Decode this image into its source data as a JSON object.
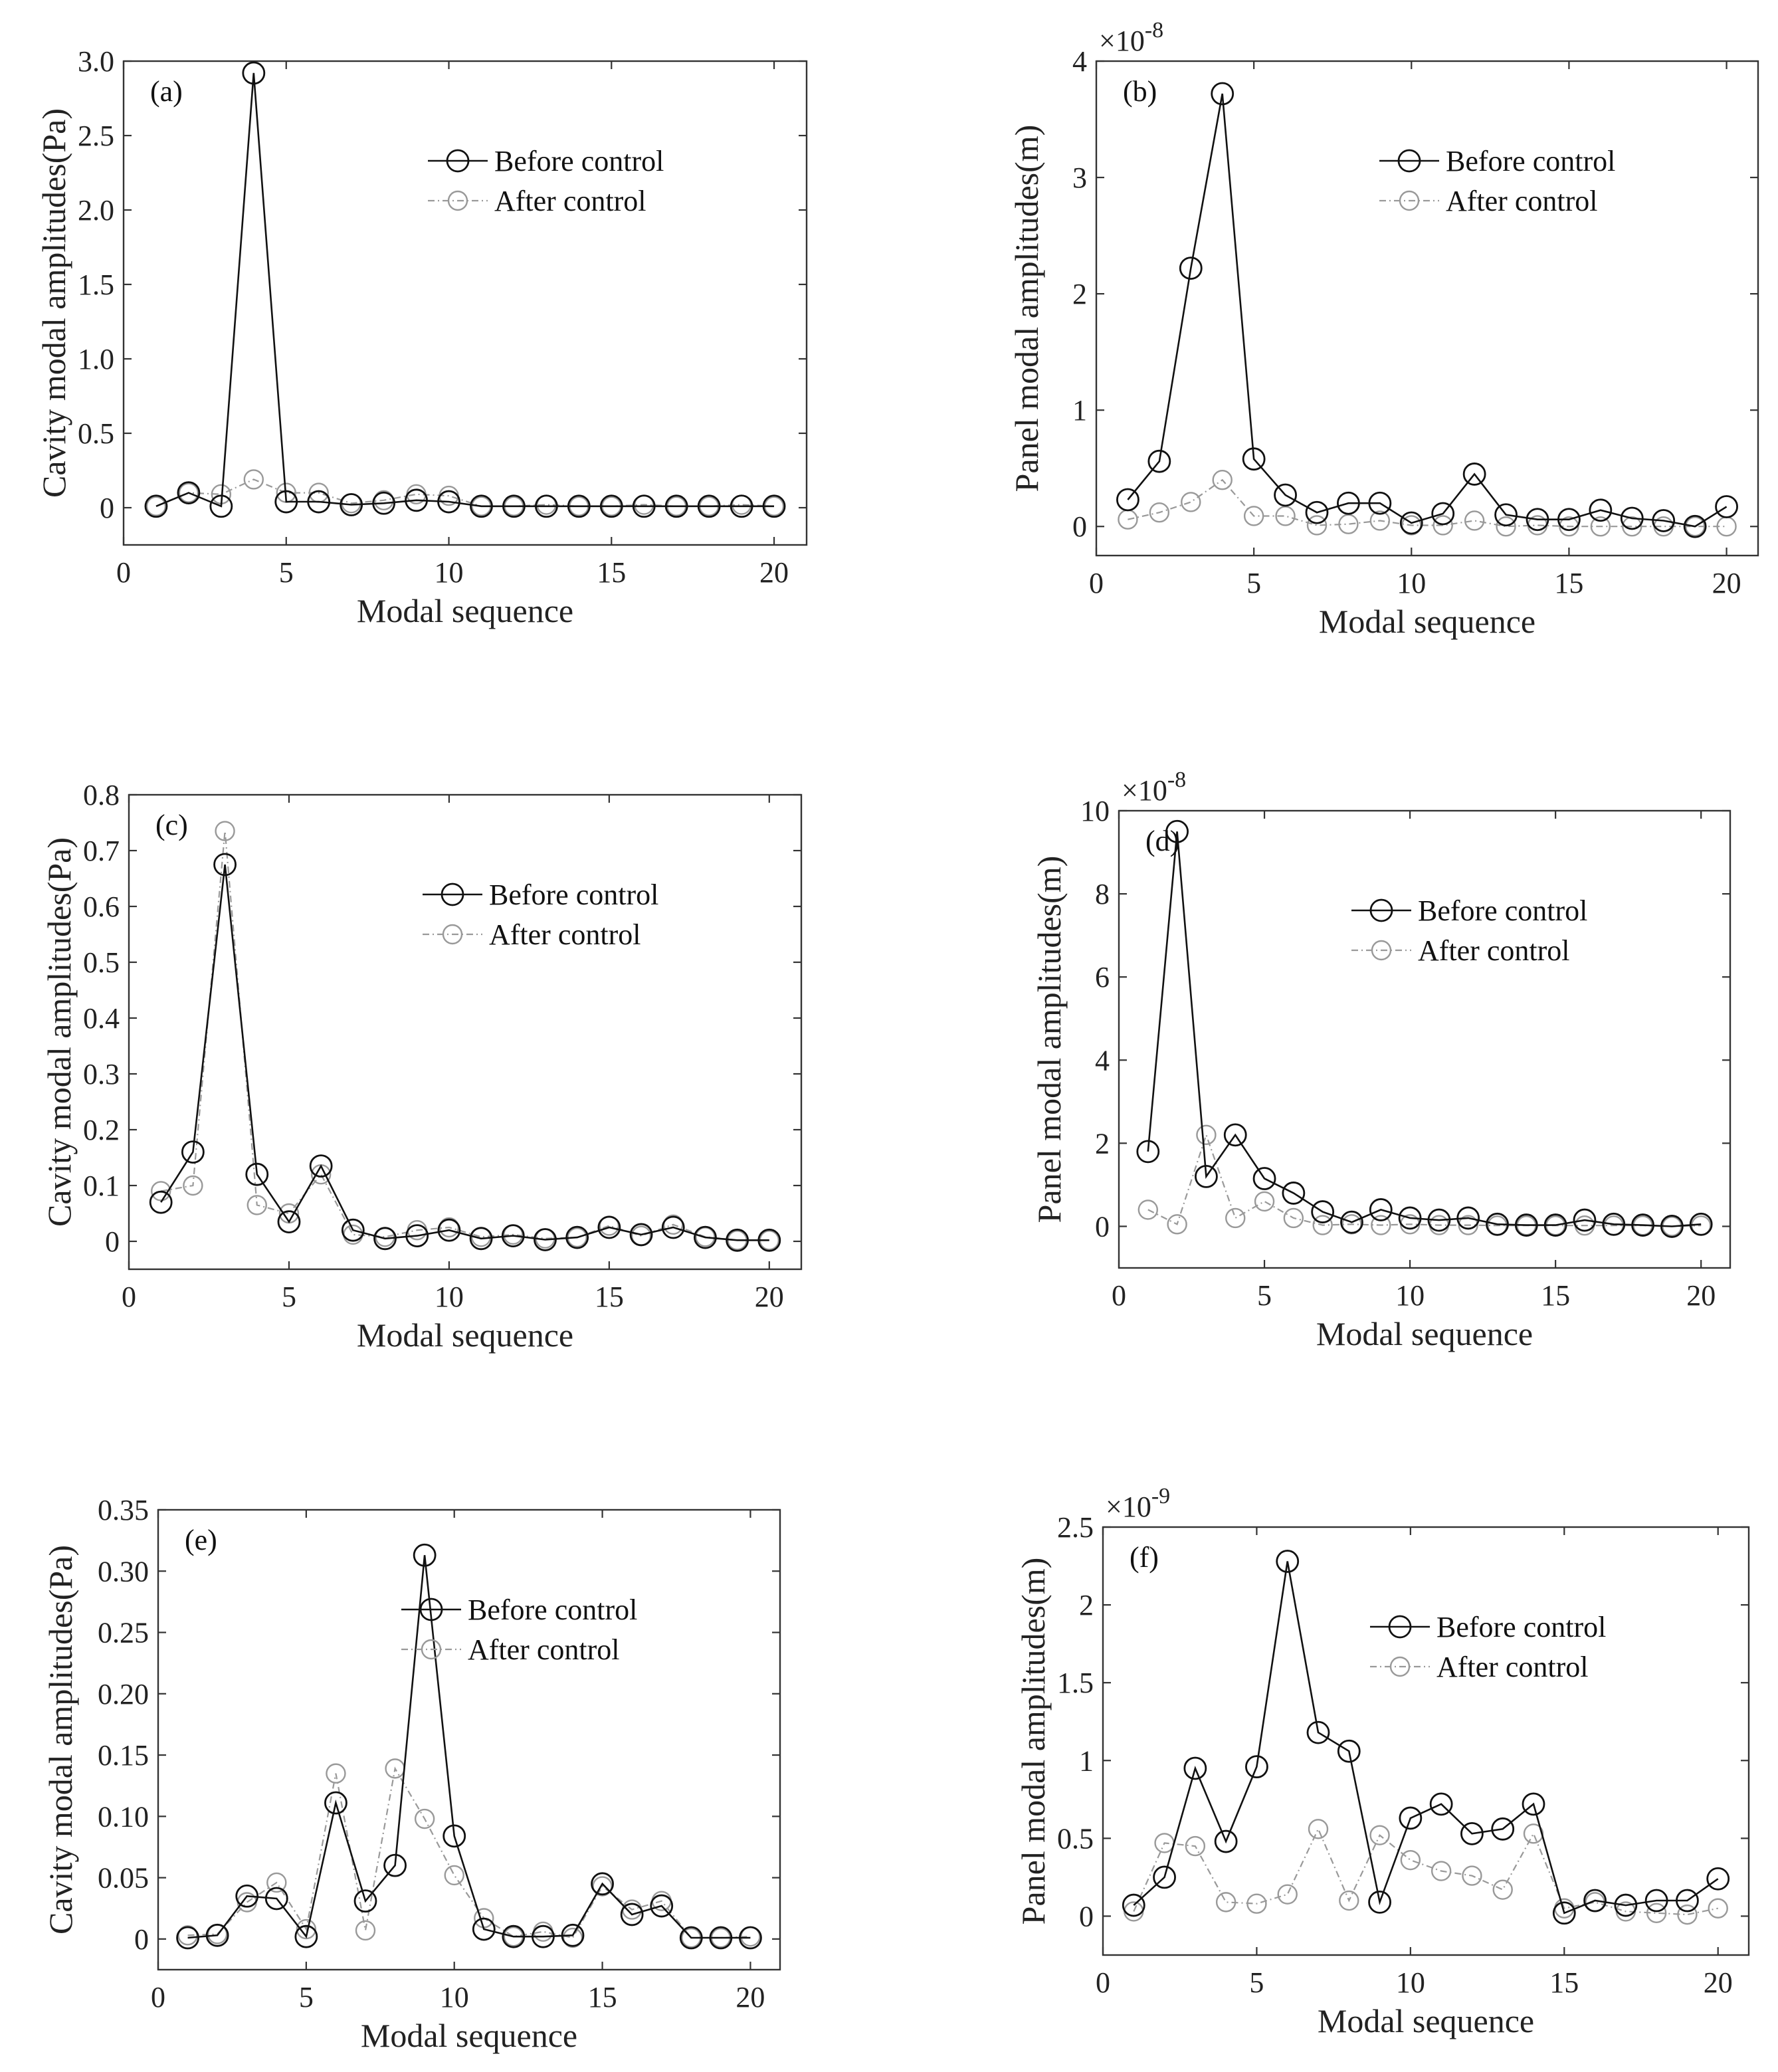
{
  "chart_data": [
    {
      "type": "line",
      "panel_label": "(a)",
      "xlabel": "Modal sequence",
      "ylabel": "Cavity modal amplitudes(Pa)",
      "xlim": [
        0,
        21
      ],
      "ylim": [
        -0.25,
        3.0
      ],
      "xticks": [
        0,
        5,
        10,
        15,
        20
      ],
      "xtick_labels": [
        "0",
        "5",
        "10",
        "15",
        "20"
      ],
      "yticks": [
        0,
        0.5,
        1.0,
        1.5,
        2.0,
        2.5,
        3.0
      ],
      "ytick_labels": [
        "0",
        "0.5",
        "1.0",
        "1.5",
        "2.0",
        "2.5",
        "3.0"
      ],
      "multiplier": "",
      "legend_position": "upper-right",
      "x": [
        1,
        2,
        3,
        4,
        5,
        6,
        7,
        8,
        9,
        10,
        11,
        12,
        13,
        14,
        15,
        16,
        17,
        18,
        19,
        20
      ],
      "series": [
        {
          "name": "Before control",
          "values": [
            0.01,
            0.1,
            0.01,
            2.92,
            0.04,
            0.04,
            0.02,
            0.03,
            0.05,
            0.04,
            0.01,
            0.01,
            0.01,
            0.01,
            0.01,
            0.01,
            0.01,
            0.01,
            0.01,
            0.01
          ]
        },
        {
          "name": "After control",
          "values": [
            0.01,
            0.1,
            0.09,
            0.19,
            0.1,
            0.1,
            0.03,
            0.05,
            0.09,
            0.08,
            0.01,
            0.01,
            0.02,
            0.01,
            0.01,
            0.02,
            0.01,
            0.01,
            0.02,
            0.01
          ]
        }
      ]
    },
    {
      "type": "line",
      "panel_label": "(b)",
      "xlabel": "Modal sequence",
      "ylabel": "Panel modal amplitudes(m)",
      "xlim": [
        0,
        21
      ],
      "ylim": [
        -0.25,
        4
      ],
      "xticks": [
        0,
        5,
        10,
        15,
        20
      ],
      "xtick_labels": [
        "0",
        "5",
        "10",
        "15",
        "20"
      ],
      "yticks": [
        0,
        1,
        2,
        3,
        4
      ],
      "ytick_labels": [
        "0",
        "1",
        "2",
        "3",
        "4"
      ],
      "multiplier": "×10",
      "multiplier_exp": "-8",
      "legend_position": "upper-right",
      "x": [
        1,
        2,
        3,
        4,
        5,
        6,
        7,
        8,
        9,
        10,
        11,
        12,
        13,
        14,
        15,
        16,
        17,
        18,
        19,
        20
      ],
      "series": [
        {
          "name": "Before control",
          "values": [
            0.23,
            0.56,
            2.22,
            3.72,
            0.58,
            0.27,
            0.12,
            0.2,
            0.2,
            0.03,
            0.11,
            0.45,
            0.1,
            0.06,
            0.06,
            0.14,
            0.07,
            0.05,
            0.0,
            0.17
          ]
        },
        {
          "name": "After control",
          "values": [
            0.06,
            0.12,
            0.21,
            0.4,
            0.09,
            0.09,
            0.01,
            0.02,
            0.05,
            0.01,
            0.01,
            0.05,
            0.0,
            0.01,
            0.0,
            0.0,
            0.0,
            0.0,
            0.0,
            0.0
          ]
        }
      ]
    },
    {
      "type": "line",
      "panel_label": "(c)",
      "xlabel": "Modal sequence",
      "ylabel": "Cavity modal amplitudes(Pa)",
      "xlim": [
        0,
        21
      ],
      "ylim": [
        -0.05,
        0.8
      ],
      "xticks": [
        0,
        5,
        10,
        15,
        20
      ],
      "xtick_labels": [
        "0",
        "5",
        "10",
        "15",
        "20"
      ],
      "yticks": [
        0,
        0.1,
        0.2,
        0.3,
        0.4,
        0.5,
        0.6,
        0.7,
        0.8
      ],
      "ytick_labels": [
        "0",
        "0.1",
        "0.2",
        "0.3",
        "0.4",
        "0.5",
        "0.6",
        "0.7",
        "0.8"
      ],
      "multiplier": "",
      "legend_position": "upper-right",
      "x": [
        1,
        2,
        3,
        4,
        5,
        6,
        7,
        8,
        9,
        10,
        11,
        12,
        13,
        14,
        15,
        16,
        17,
        18,
        19,
        20
      ],
      "series": [
        {
          "name": "Before control",
          "values": [
            0.07,
            0.16,
            0.675,
            0.12,
            0.035,
            0.135,
            0.02,
            0.005,
            0.01,
            0.02,
            0.005,
            0.01,
            0.003,
            0.007,
            0.025,
            0.012,
            0.025,
            0.007,
            0.002,
            0.002
          ]
        },
        {
          "name": "After control",
          "values": [
            0.09,
            0.1,
            0.735,
            0.065,
            0.05,
            0.12,
            0.012,
            0.008,
            0.02,
            0.025,
            0.008,
            0.012,
            0.005,
            0.007,
            0.028,
            0.01,
            0.03,
            0.008,
            0.002,
            0.002
          ]
        }
      ]
    },
    {
      "type": "line",
      "panel_label": "(d)",
      "xlabel": "Modal sequence",
      "ylabel": "Panel modal amplitudes(m)",
      "xlim": [
        0,
        21
      ],
      "ylim": [
        -1,
        10
      ],
      "xticks": [
        0,
        5,
        10,
        15,
        20
      ],
      "xtick_labels": [
        "0",
        "5",
        "10",
        "15",
        "20"
      ],
      "yticks": [
        0,
        2,
        4,
        6,
        8,
        10
      ],
      "ytick_labels": [
        "0",
        "2",
        "4",
        "6",
        "8",
        "10"
      ],
      "multiplier": "×10",
      "multiplier_exp": "-8",
      "legend_position": "upper-right",
      "x": [
        1,
        2,
        3,
        4,
        5,
        6,
        7,
        8,
        9,
        10,
        11,
        12,
        13,
        14,
        15,
        16,
        17,
        18,
        19,
        20
      ],
      "series": [
        {
          "name": "Before control",
          "values": [
            1.8,
            9.5,
            1.2,
            2.2,
            1.15,
            0.8,
            0.35,
            0.1,
            0.4,
            0.2,
            0.15,
            0.2,
            0.05,
            0.03,
            0.03,
            0.15,
            0.05,
            0.03,
            0.0,
            0.05
          ]
        },
        {
          "name": "After control",
          "values": [
            0.4,
            0.05,
            2.2,
            0.2,
            0.6,
            0.2,
            0.03,
            0.05,
            0.03,
            0.05,
            0.03,
            0.03,
            0.02,
            0.02,
            0.02,
            0.02,
            0.02,
            0.02,
            0.0,
            0.02
          ]
        }
      ]
    },
    {
      "type": "line",
      "panel_label": "(e)",
      "xlabel": "Modal sequence",
      "ylabel": "Cavity modal amplitudes(Pa)",
      "xlim": [
        0,
        21
      ],
      "ylim": [
        -0.025,
        0.35
      ],
      "xticks": [
        0,
        5,
        10,
        15,
        20
      ],
      "xtick_labels": [
        "0",
        "5",
        "10",
        "15",
        "20"
      ],
      "yticks": [
        0,
        0.05,
        0.1,
        0.15,
        0.2,
        0.25,
        0.3,
        0.35
      ],
      "ytick_labels": [
        "0",
        "0.05",
        "0.10",
        "0.15",
        "0.20",
        "0.25",
        "0.30",
        "0.35"
      ],
      "multiplier": "",
      "legend_position": "upper-right",
      "x": [
        1,
        2,
        3,
        4,
        5,
        6,
        7,
        8,
        9,
        10,
        11,
        12,
        13,
        14,
        15,
        16,
        17,
        18,
        19,
        20
      ],
      "series": [
        {
          "name": "Before control",
          "values": [
            0.001,
            0.003,
            0.035,
            0.033,
            0.002,
            0.111,
            0.031,
            0.06,
            0.313,
            0.084,
            0.008,
            0.002,
            0.002,
            0.003,
            0.045,
            0.02,
            0.027,
            0.001,
            0.001,
            0.001
          ]
        },
        {
          "name": "After control",
          "values": [
            0.003,
            0.004,
            0.03,
            0.046,
            0.008,
            0.135,
            0.007,
            0.139,
            0.098,
            0.052,
            0.017,
            0.002,
            0.006,
            0.001,
            0.043,
            0.024,
            0.031,
            0.001,
            0.001,
            0.002
          ]
        }
      ]
    },
    {
      "type": "line",
      "panel_label": "(f)",
      "xlabel": "Modal sequence",
      "ylabel": "Panel modal amplitudes(m)",
      "xlim": [
        0,
        21
      ],
      "ylim": [
        -0.25,
        2.5
      ],
      "xticks": [
        0,
        5,
        10,
        15,
        20
      ],
      "xtick_labels": [
        "0",
        "5",
        "10",
        "15",
        "20"
      ],
      "yticks": [
        0,
        0.5,
        1,
        1.5,
        2,
        2.5
      ],
      "ytick_labels": [
        "0",
        "0.5",
        "1",
        "1.5",
        "2",
        "2.5"
      ],
      "multiplier": "×10",
      "multiplier_exp": "-9",
      "legend_position": "upper-right",
      "x": [
        1,
        2,
        3,
        4,
        5,
        6,
        7,
        8,
        9,
        10,
        11,
        12,
        13,
        14,
        15,
        16,
        17,
        18,
        19,
        20
      ],
      "series": [
        {
          "name": "Before control",
          "values": [
            0.07,
            0.25,
            0.95,
            0.48,
            0.96,
            2.28,
            1.18,
            1.06,
            0.09,
            0.63,
            0.72,
            0.53,
            0.56,
            0.72,
            0.02,
            0.1,
            0.07,
            0.1,
            0.1,
            0.24
          ]
        },
        {
          "name": "After control",
          "values": [
            0.03,
            0.47,
            0.45,
            0.09,
            0.08,
            0.14,
            0.56,
            0.1,
            0.52,
            0.36,
            0.29,
            0.26,
            0.17,
            0.53,
            0.05,
            0.09,
            0.03,
            0.02,
            0.01,
            0.05
          ]
        }
      ]
    }
  ]
}
